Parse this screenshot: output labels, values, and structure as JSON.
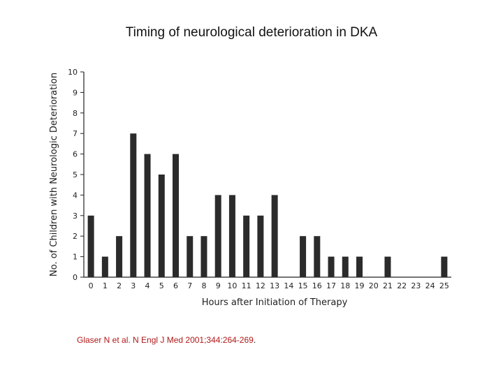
{
  "slide": {
    "title": "Timing of neurological deterioration in DKA",
    "citation": "Glaser N et al. N Engl J Med 2001;344:264-269",
    "citation_end": "."
  },
  "chart_data": {
    "type": "bar",
    "title": "",
    "xlabel": "Hours after Initiation of Therapy",
    "ylabel": "No. of Children with Neurologic Deterioration",
    "categories": [
      "0",
      "1",
      "2",
      "3",
      "4",
      "5",
      "6",
      "7",
      "8",
      "9",
      "10",
      "11",
      "12",
      "13",
      "14",
      "15",
      "16",
      "17",
      "18",
      "19",
      "20",
      "21",
      "22",
      "23",
      "24",
      "25"
    ],
    "values": [
      3,
      1,
      2,
      7,
      6,
      5,
      6,
      2,
      2,
      4,
      4,
      3,
      3,
      4,
      0,
      2,
      2,
      1,
      1,
      1,
      0,
      1,
      0,
      0,
      0,
      1
    ],
    "ylim": [
      0,
      10
    ],
    "yticks": [
      "0",
      "1",
      "2",
      "3",
      "4",
      "5",
      "6",
      "7",
      "8",
      "9",
      "10"
    ],
    "grid": false,
    "bar_color": "#2b2b2b",
    "accent_color": "#b01818"
  }
}
